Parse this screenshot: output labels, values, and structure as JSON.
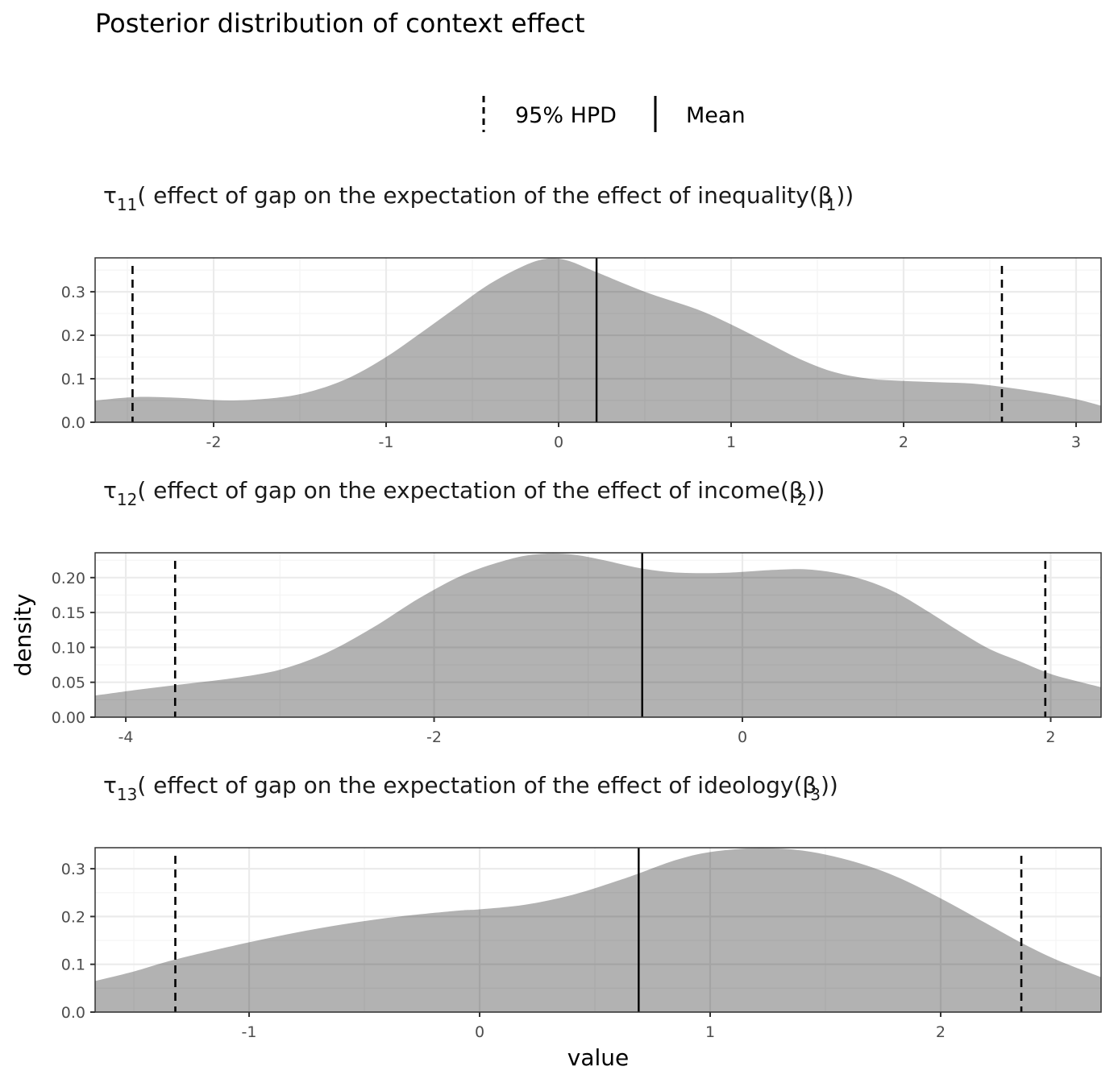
{
  "chart_data": {
    "type": "area",
    "title": "Posterior distribution of context effect",
    "xlabel": "value",
    "ylabel": "density",
    "grid": true,
    "legend": {
      "position": "top",
      "entries": [
        {
          "label": "95% HPD",
          "linetype": "dashed"
        },
        {
          "label": "Mean",
          "linetype": "solid"
        }
      ]
    },
    "colors": {
      "fill": "#b3b3b3",
      "line": "#000000",
      "grid_major": "#ebebeb",
      "grid_minor": "#f4f4f4",
      "panel_border": "#333333",
      "tick_text": "#4d4d4d"
    },
    "panels": [
      {
        "strip": {
          "symbol": "τ",
          "sub": "11",
          "text": "( effect of gap on the expectation of the effect of inequality(",
          "beta": "β",
          "beta_sub": "1",
          "close": "))"
        },
        "xlim": [
          -2.687,
          3.145
        ],
        "ylim": [
          0,
          0.378
        ],
        "x_ticks": [
          -2,
          -1,
          0,
          1,
          2,
          3
        ],
        "x_tick_labels": [
          "-2",
          "-1",
          "0",
          "1",
          "2",
          "3"
        ],
        "y_ticks": [
          0,
          0.1,
          0.2,
          0.3
        ],
        "y_tick_labels": [
          "0.0",
          "0.1",
          "0.2",
          "0.3"
        ],
        "hpd": [
          -2.47,
          2.57
        ],
        "mean": 0.22,
        "density": {
          "x": [
            -2.687,
            -2.45,
            -2.2,
            -1.9,
            -1.6,
            -1.4,
            -1.2,
            -1.0,
            -0.8,
            -0.6,
            -0.4,
            -0.2,
            -0.07,
            0.05,
            0.22,
            0.5,
            0.8,
            1.0,
            1.2,
            1.4,
            1.6,
            1.8,
            2.0,
            2.2,
            2.4,
            2.6,
            2.8,
            3.0,
            3.145
          ],
          "y": [
            0.05,
            0.058,
            0.056,
            0.05,
            0.058,
            0.075,
            0.105,
            0.15,
            0.205,
            0.262,
            0.318,
            0.36,
            0.376,
            0.372,
            0.345,
            0.3,
            0.26,
            0.225,
            0.185,
            0.145,
            0.115,
            0.1,
            0.095,
            0.092,
            0.089,
            0.08,
            0.068,
            0.053,
            0.038
          ]
        }
      },
      {
        "strip": {
          "symbol": "τ",
          "sub": "12",
          "text": "( effect of gap on the expectation of the effect of income(",
          "beta": "β",
          "beta_sub": "2",
          "close": "))"
        },
        "xlim": [
          -4.199,
          2.327
        ],
        "ylim": [
          0,
          0.2356
        ],
        "x_ticks": [
          -4,
          -2,
          0,
          2
        ],
        "x_tick_labels": [
          "-4",
          "-2",
          "0",
          "2"
        ],
        "y_ticks": [
          0,
          0.05,
          0.1,
          0.15,
          0.2
        ],
        "y_tick_labels": [
          "0.00",
          "0.05",
          "0.10",
          "0.15",
          "0.20"
        ],
        "hpd": [
          -3.68,
          1.965
        ],
        "mean": -0.65,
        "density": {
          "x": [
            -4.199,
            -3.9,
            -3.6,
            -3.3,
            -3.0,
            -2.7,
            -2.4,
            -2.1,
            -1.8,
            -1.5,
            -1.3,
            -1.1,
            -0.9,
            -0.65,
            -0.4,
            -0.1,
            0.2,
            0.4,
            0.6,
            0.8,
            1.0,
            1.2,
            1.4,
            1.6,
            1.8,
            2.0,
            2.2,
            2.327
          ],
          "y": [
            0.031,
            0.04,
            0.048,
            0.056,
            0.068,
            0.092,
            0.128,
            0.17,
            0.205,
            0.227,
            0.234,
            0.233,
            0.225,
            0.213,
            0.207,
            0.207,
            0.211,
            0.212,
            0.207,
            0.196,
            0.178,
            0.152,
            0.124,
            0.098,
            0.08,
            0.062,
            0.05,
            0.043
          ]
        }
      },
      {
        "strip": {
          "symbol": "τ",
          "sub": "13",
          "text": "( effect of gap on the expectation of the effect of ideology(",
          "beta": "β",
          "beta_sub": "3",
          "close": "))"
        },
        "xlim": [
          -1.668,
          2.696
        ],
        "ylim": [
          0,
          0.344
        ],
        "x_ticks": [
          -1,
          0,
          1,
          2
        ],
        "x_tick_labels": [
          "-1",
          "0",
          "1",
          "2"
        ],
        "y_ticks": [
          0,
          0.1,
          0.2,
          0.3
        ],
        "y_tick_labels": [
          "0.0",
          "0.1",
          "0.2",
          "0.3"
        ],
        "hpd": [
          -1.32,
          2.35
        ],
        "mean": 0.69,
        "density": {
          "x": [
            -1.668,
            -1.5,
            -1.32,
            -1.0,
            -0.7,
            -0.4,
            -0.1,
            0.0,
            0.2,
            0.4,
            0.6,
            0.69,
            0.85,
            1.0,
            1.2,
            1.4,
            1.6,
            1.8,
            2.0,
            2.2,
            2.35,
            2.5,
            2.696
          ],
          "y": [
            0.065,
            0.085,
            0.11,
            0.146,
            0.175,
            0.197,
            0.212,
            0.215,
            0.225,
            0.245,
            0.275,
            0.29,
            0.318,
            0.335,
            0.343,
            0.338,
            0.318,
            0.285,
            0.238,
            0.185,
            0.145,
            0.11,
            0.073
          ]
        }
      }
    ]
  }
}
